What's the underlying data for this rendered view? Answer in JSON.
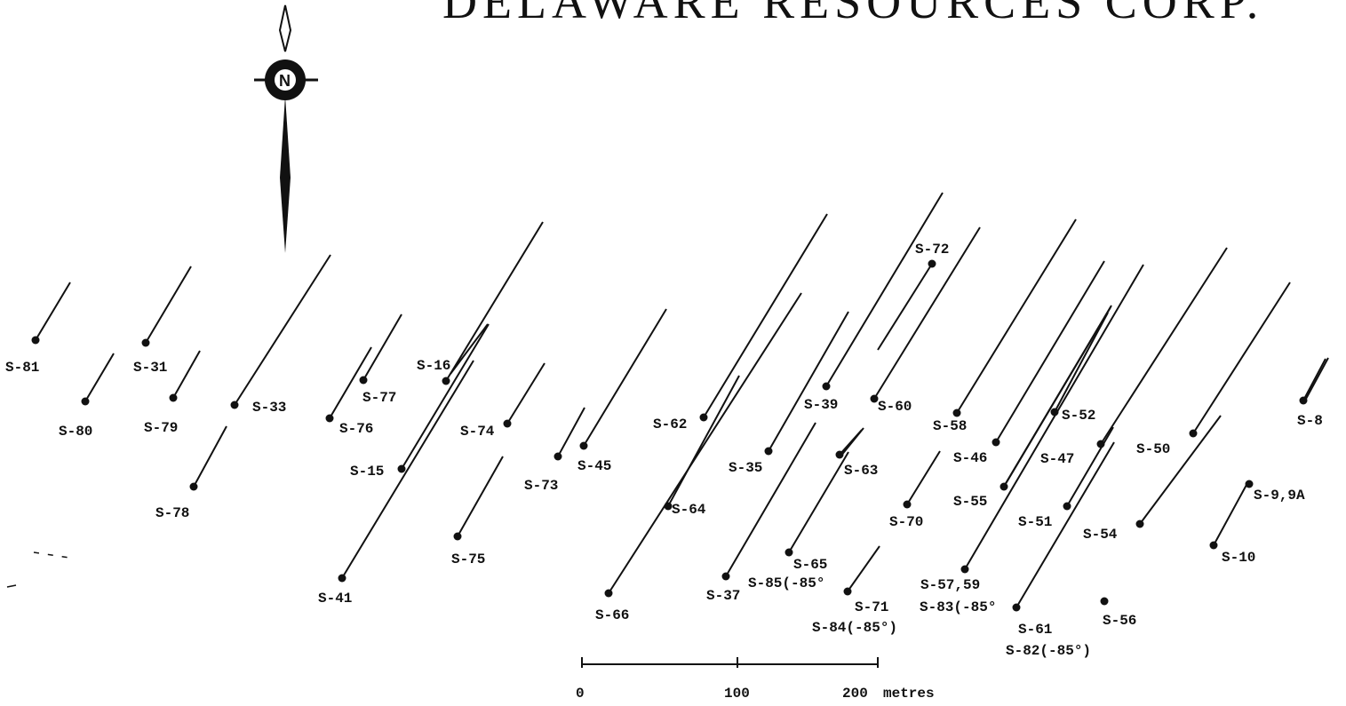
{
  "title": "DELAWARE RESOURCES CORP.",
  "north_arrow": {
    "label": "N",
    "icon": "north-arrow-icon"
  },
  "scale_bar": {
    "ticks": [
      "0",
      "100",
      "200"
    ],
    "unit": "metres"
  },
  "colors": {
    "ink": "#111111"
  },
  "drill_holes": [
    {
      "label": "S-81"
    },
    {
      "label": "S-31"
    },
    {
      "label": "S-80"
    },
    {
      "label": "S-79"
    },
    {
      "label": "S-78"
    },
    {
      "label": "S-33"
    },
    {
      "label": "S-77"
    },
    {
      "label": "S-76"
    },
    {
      "label": "S-16"
    },
    {
      "label": "S-15"
    },
    {
      "label": "S-41"
    },
    {
      "label": "S-74"
    },
    {
      "label": "S-75"
    },
    {
      "label": "S-73"
    },
    {
      "label": "S-45"
    },
    {
      "label": "S-62"
    },
    {
      "label": "S-64"
    },
    {
      "label": "S-66"
    },
    {
      "label": "S-35"
    },
    {
      "label": "S-37"
    },
    {
      "label": "S-65"
    },
    {
      "label": "S-85(-85°"
    },
    {
      "label": "S-39"
    },
    {
      "label": "S-60"
    },
    {
      "label": "S-63"
    },
    {
      "label": "S-71"
    },
    {
      "label": "S-84(-85°)"
    },
    {
      "label": "S-72"
    },
    {
      "label": "S-70"
    },
    {
      "label": "S-58"
    },
    {
      "label": "S-46"
    },
    {
      "label": "S-55"
    },
    {
      "label": "S-57,59"
    },
    {
      "label": "S-83(-85°"
    },
    {
      "label": "S-52"
    },
    {
      "label": "S-47"
    },
    {
      "label": "S-51"
    },
    {
      "label": "S-61"
    },
    {
      "label": "S-82(-85°)"
    },
    {
      "label": "S-50"
    },
    {
      "label": "S-54"
    },
    {
      "label": "S-56"
    },
    {
      "label": "S-8"
    },
    {
      "label": "S-9,9A"
    },
    {
      "label": "S-10"
    }
  ]
}
